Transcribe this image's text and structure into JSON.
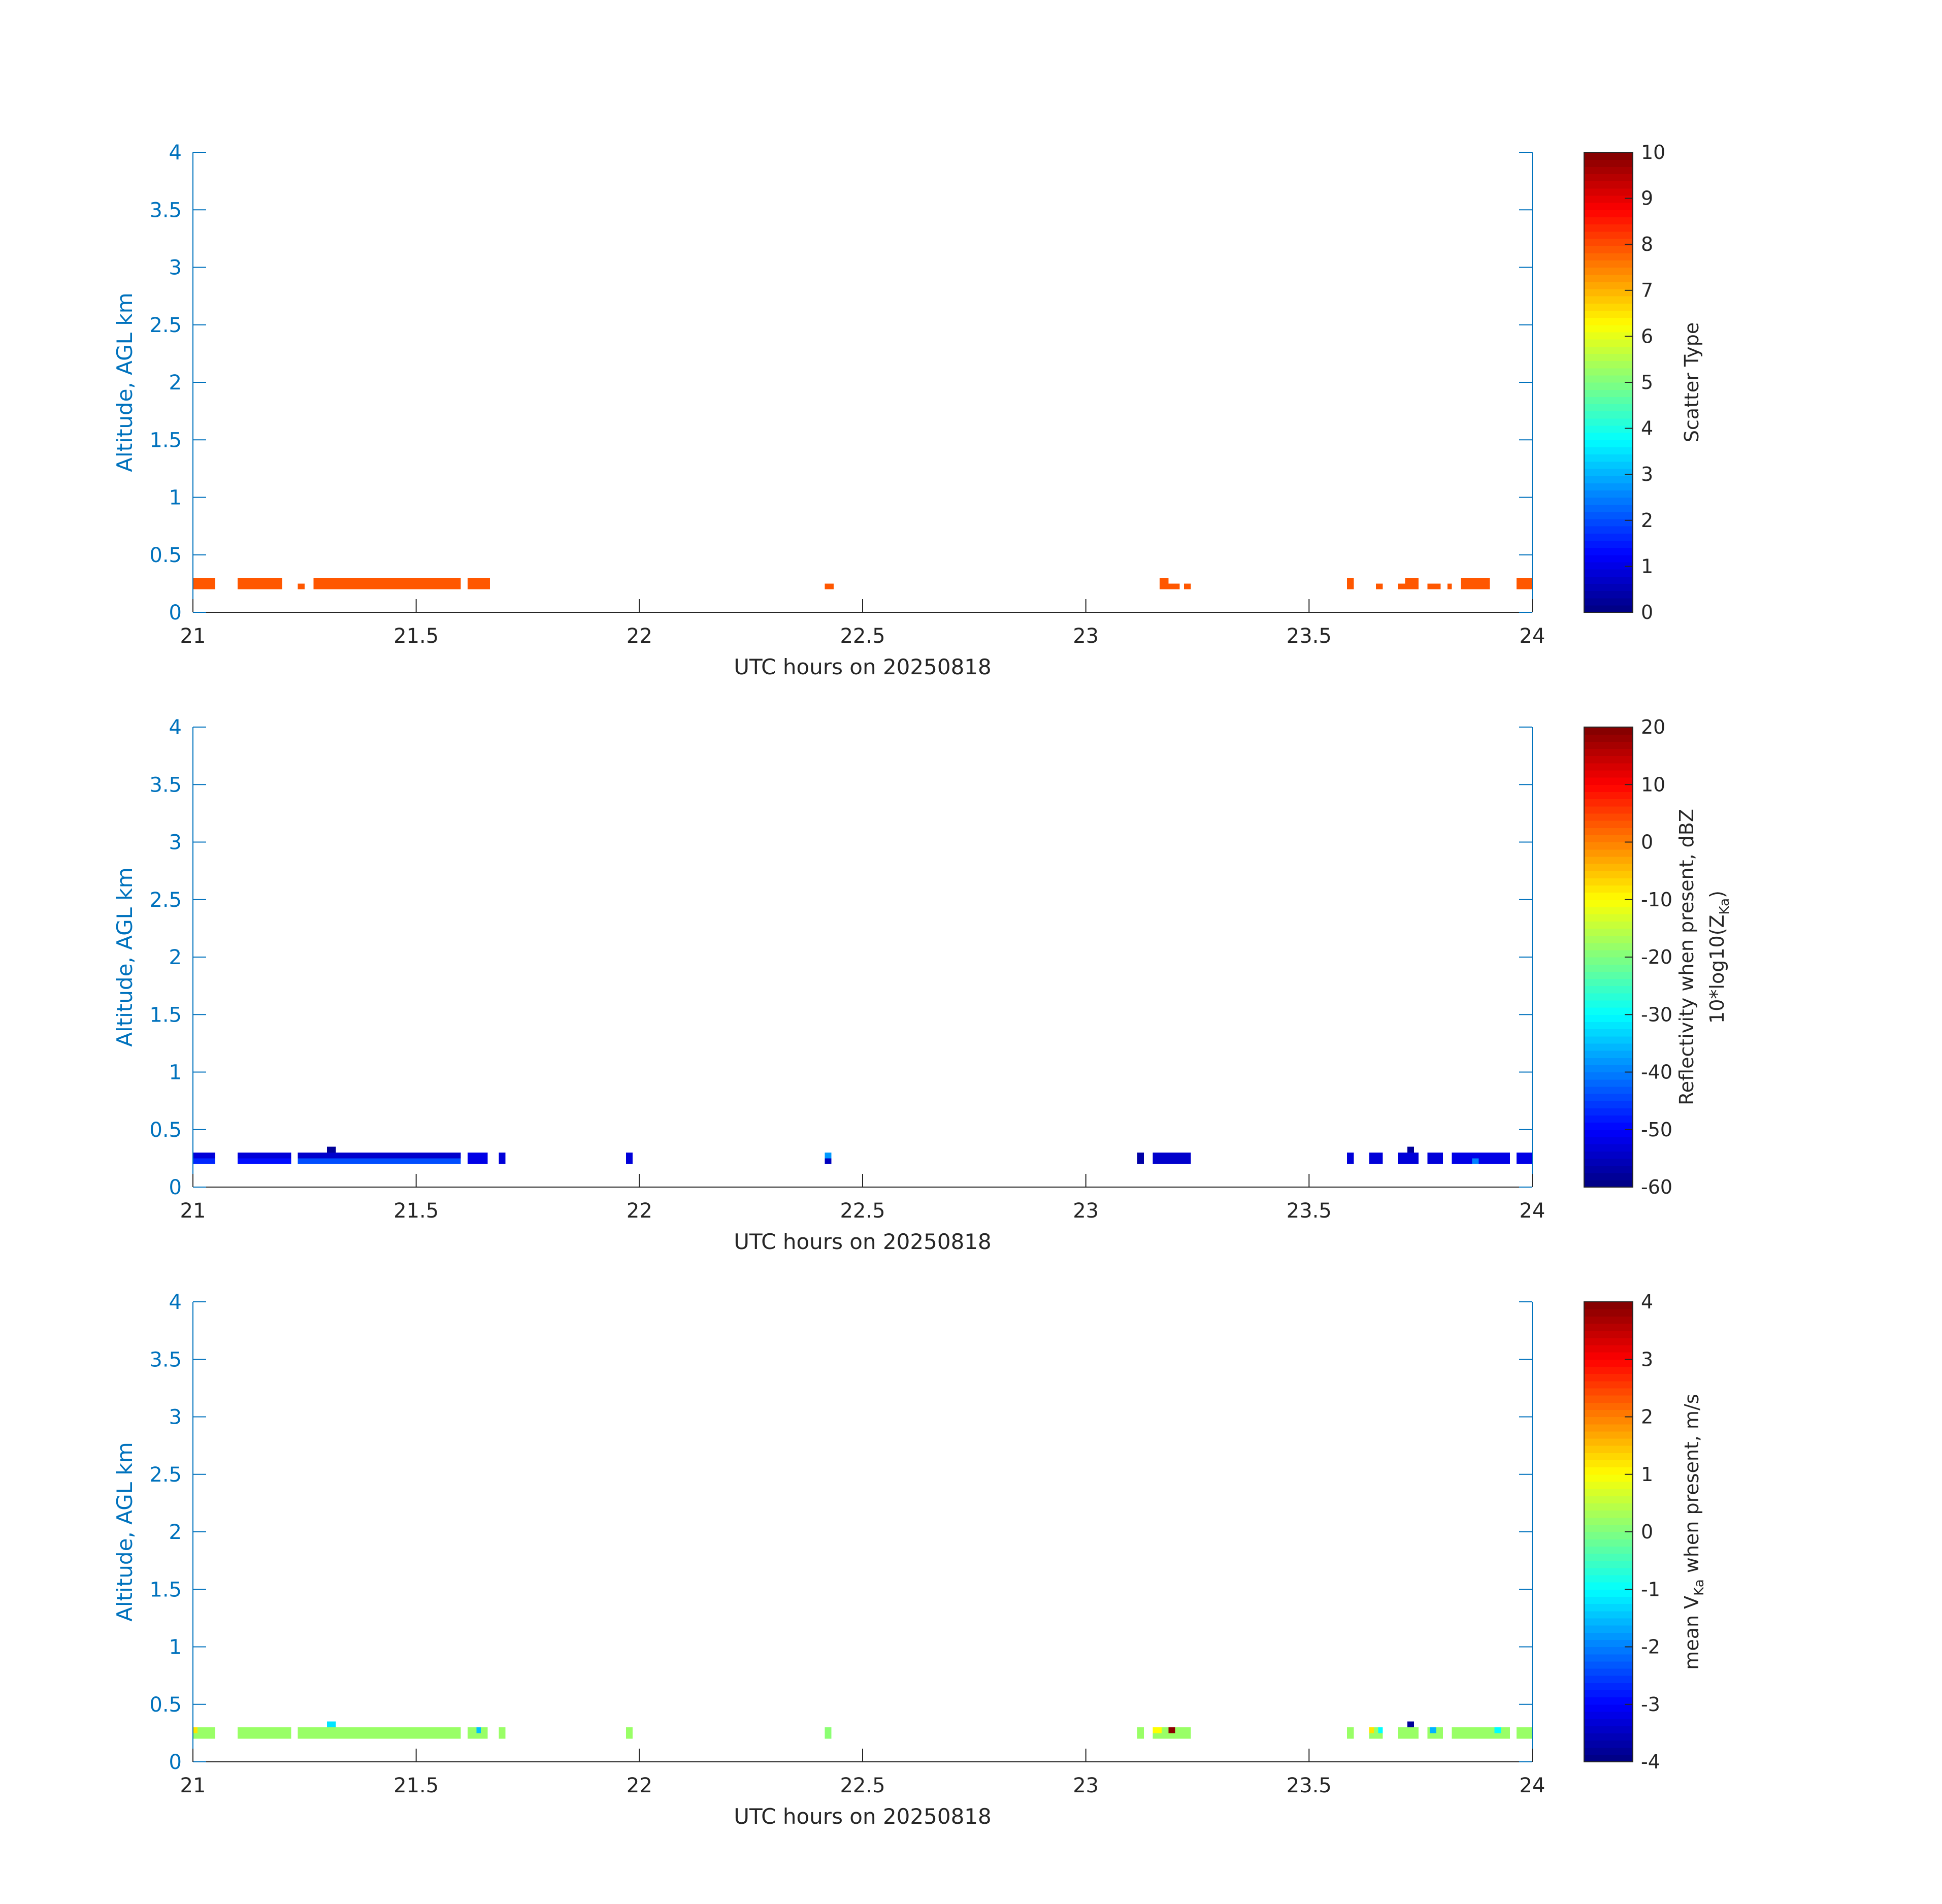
{
  "colormap": "jet",
  "axis_color": "#0072BD",
  "text_color": "#262626",
  "chart_data": [
    {
      "type": "heatmap",
      "xlabel": "UTC hours on 20250818",
      "ylabel": "Altitude, AGL km",
      "xlim": [
        21,
        24
      ],
      "ylim": [
        0,
        4
      ],
      "xticks": [
        "21",
        "21.5",
        "22",
        "22.5",
        "23",
        "23.5",
        "24"
      ],
      "yticks": [
        "0",
        "0.5",
        "1",
        "1.5",
        "2",
        "2.5",
        "3",
        "3.5",
        "4"
      ],
      "colorbar": {
        "label": "Scatter Type",
        "clim": [
          0,
          10
        ],
        "ticks": [
          "0",
          "1",
          "2",
          "3",
          "4",
          "5",
          "6",
          "7",
          "8",
          "9",
          "10"
        ]
      },
      "cells": [
        [
          21.0,
          21.05,
          0.2,
          0.3,
          7.9
        ],
        [
          21.1,
          21.2,
          0.2,
          0.3,
          7.9
        ],
        [
          21.235,
          21.25,
          0.2,
          0.25,
          7.9
        ],
        [
          21.27,
          21.6,
          0.2,
          0.3,
          7.9
        ],
        [
          21.615,
          21.665,
          0.2,
          0.3,
          7.9
        ],
        [
          22.415,
          22.435,
          0.2,
          0.25,
          7.9
        ],
        [
          23.165,
          23.185,
          0.2,
          0.3,
          7.9
        ],
        [
          23.185,
          23.21,
          0.2,
          0.25,
          7.9
        ],
        [
          23.22,
          23.235,
          0.2,
          0.25,
          7.9
        ],
        [
          23.585,
          23.6,
          0.2,
          0.3,
          7.9
        ],
        [
          23.65,
          23.665,
          0.2,
          0.25,
          7.9
        ],
        [
          23.7,
          23.715,
          0.2,
          0.25,
          7.9
        ],
        [
          23.715,
          23.745,
          0.2,
          0.3,
          7.9
        ],
        [
          23.765,
          23.795,
          0.2,
          0.25,
          7.9
        ],
        [
          23.81,
          23.82,
          0.2,
          0.25,
          7.9
        ],
        [
          23.84,
          23.905,
          0.2,
          0.3,
          7.9
        ],
        [
          23.965,
          24.0,
          0.2,
          0.3,
          7.9
        ]
      ]
    },
    {
      "type": "heatmap",
      "xlabel": "UTC hours on 20250818",
      "ylabel": "Altitude, AGL km",
      "xlim": [
        21,
        24
      ],
      "ylim": [
        0,
        4
      ],
      "xticks": [
        "21",
        "21.5",
        "22",
        "22.5",
        "23",
        "23.5",
        "24"
      ],
      "yticks": [
        "0",
        "0.5",
        "1",
        "1.5",
        "2",
        "2.5",
        "3",
        "3.5",
        "4"
      ],
      "colorbar": {
        "label_line1": "Reflectivity when present, dBZ",
        "label_line2": "10*log10(Z",
        "label_sub": "Ka",
        "label_close": ")",
        "clim": [
          -60,
          20
        ],
        "ticks": [
          "-60",
          "-50",
          "-40",
          "-30",
          "-20",
          "-10",
          "0",
          "10",
          "20"
        ]
      },
      "cells": [
        [
          21.0,
          21.05,
          0.25,
          0.3,
          -53
        ],
        [
          21.0,
          21.05,
          0.2,
          0.25,
          -47
        ],
        [
          21.1,
          21.22,
          0.25,
          0.3,
          -53
        ],
        [
          21.1,
          21.22,
          0.2,
          0.25,
          -49
        ],
        [
          21.235,
          21.6,
          0.25,
          0.3,
          -54
        ],
        [
          21.235,
          21.6,
          0.2,
          0.25,
          -44
        ],
        [
          21.3,
          21.32,
          0.3,
          0.35,
          -58
        ],
        [
          21.615,
          21.66,
          0.2,
          0.3,
          -52
        ],
        [
          21.685,
          21.7,
          0.2,
          0.3,
          -53
        ],
        [
          21.97,
          21.985,
          0.2,
          0.3,
          -53
        ],
        [
          22.415,
          22.43,
          0.25,
          0.3,
          -38
        ],
        [
          22.415,
          22.43,
          0.2,
          0.25,
          -55
        ],
        [
          23.115,
          23.13,
          0.2,
          0.3,
          -57
        ],
        [
          23.15,
          23.235,
          0.2,
          0.3,
          -54
        ],
        [
          23.585,
          23.6,
          0.2,
          0.3,
          -53
        ],
        [
          23.635,
          23.665,
          0.2,
          0.3,
          -53
        ],
        [
          23.7,
          23.745,
          0.2,
          0.3,
          -53
        ],
        [
          23.72,
          23.735,
          0.3,
          0.35,
          -58
        ],
        [
          23.765,
          23.8,
          0.2,
          0.3,
          -53
        ],
        [
          23.82,
          23.95,
          0.2,
          0.3,
          -52
        ],
        [
          23.865,
          23.88,
          0.2,
          0.25,
          -40
        ],
        [
          23.965,
          24.0,
          0.2,
          0.3,
          -52
        ]
      ]
    },
    {
      "type": "heatmap",
      "xlabel": "UTC hours on 20250818",
      "ylabel": "Altitude, AGL km",
      "xlim": [
        21,
        24
      ],
      "ylim": [
        0,
        4
      ],
      "xticks": [
        "21",
        "21.5",
        "22",
        "22.5",
        "23",
        "23.5",
        "24"
      ],
      "yticks": [
        "0",
        "0.5",
        "1",
        "1.5",
        "2",
        "2.5",
        "3",
        "3.5",
        "4"
      ],
      "colorbar": {
        "label_prefix": "mean V",
        "label_sub": "Ka",
        "label_suffix": " when present, m/s",
        "clim": [
          -4,
          4
        ],
        "ticks": [
          "-4",
          "-3",
          "-2",
          "-1",
          "0",
          "1",
          "2",
          "3",
          "4"
        ]
      },
      "cells": [
        [
          21.0,
          21.05,
          0.2,
          0.3,
          0.2
        ],
        [
          21.0,
          21.01,
          0.25,
          0.3,
          1.2
        ],
        [
          21.1,
          21.22,
          0.2,
          0.3,
          0.2
        ],
        [
          21.235,
          21.6,
          0.2,
          0.3,
          0.2
        ],
        [
          21.3,
          21.32,
          0.3,
          0.35,
          -1.2
        ],
        [
          21.615,
          21.66,
          0.2,
          0.3,
          0.2
        ],
        [
          21.635,
          21.645,
          0.25,
          0.3,
          -1.5
        ],
        [
          21.685,
          21.7,
          0.2,
          0.3,
          0.2
        ],
        [
          21.97,
          21.985,
          0.2,
          0.3,
          0.2
        ],
        [
          22.415,
          22.43,
          0.2,
          0.3,
          0.1
        ],
        [
          23.115,
          23.13,
          0.2,
          0.3,
          0.2
        ],
        [
          23.15,
          23.235,
          0.2,
          0.3,
          0.2
        ],
        [
          23.15,
          23.17,
          0.25,
          0.3,
          1.0
        ],
        [
          23.185,
          23.2,
          0.25,
          0.3,
          3.9
        ],
        [
          23.585,
          23.6,
          0.2,
          0.3,
          0.2
        ],
        [
          23.635,
          23.665,
          0.2,
          0.3,
          0.2
        ],
        [
          23.635,
          23.645,
          0.25,
          0.3,
          1.2
        ],
        [
          23.655,
          23.665,
          0.25,
          0.3,
          -1.0
        ],
        [
          23.7,
          23.745,
          0.2,
          0.3,
          0.2
        ],
        [
          23.72,
          23.735,
          0.3,
          0.35,
          -3.8
        ],
        [
          23.765,
          23.8,
          0.2,
          0.3,
          0.2
        ],
        [
          23.77,
          23.785,
          0.25,
          0.3,
          -1.6
        ],
        [
          23.82,
          23.95,
          0.2,
          0.3,
          0.2
        ],
        [
          23.915,
          23.93,
          0.25,
          0.3,
          -1.0
        ],
        [
          23.965,
          24.0,
          0.2,
          0.3,
          0.2
        ]
      ]
    }
  ]
}
